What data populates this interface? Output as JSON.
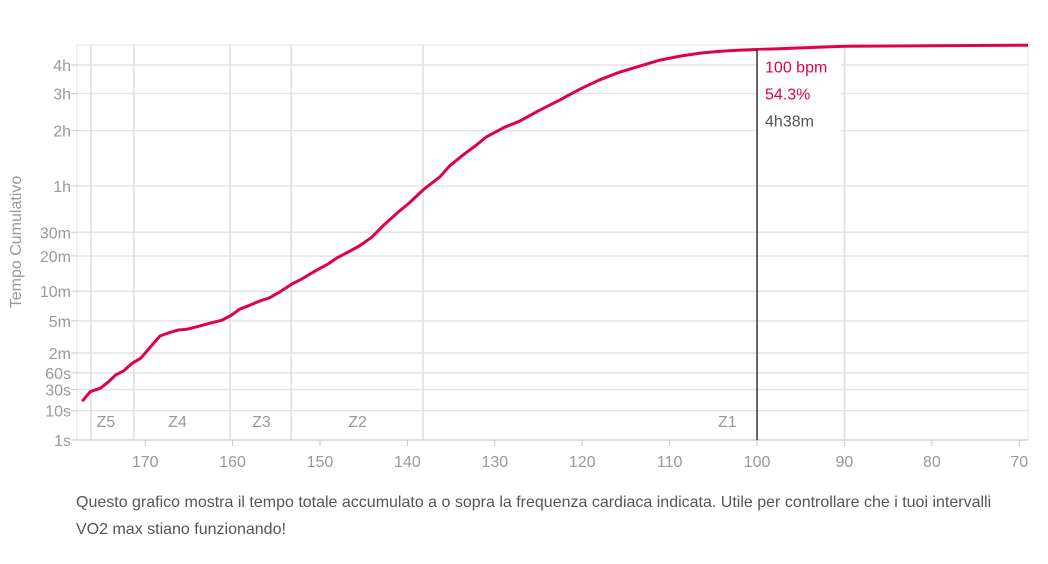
{
  "chart_data": {
    "type": "line",
    "title": "",
    "xlabel": "",
    "ylabel": "Tempo Cumulativo",
    "x_unit": "bpm",
    "y_unit": "seconds",
    "y_scale": "power-0.25",
    "xlim": [
      177.8,
      69
    ],
    "ylim": [
      1,
      17400
    ],
    "x_ticks": [
      170,
      160,
      150,
      140,
      130,
      120,
      110,
      100,
      90,
      80,
      70
    ],
    "y_ticks": [
      {
        "value": 1,
        "label": "1s"
      },
      {
        "value": 10,
        "label": "10s"
      },
      {
        "value": 30,
        "label": "30s"
      },
      {
        "value": 60,
        "label": "60s"
      },
      {
        "value": 120,
        "label": "2m"
      },
      {
        "value": 300,
        "label": "5m"
      },
      {
        "value": 600,
        "label": "10m"
      },
      {
        "value": 1200,
        "label": "20m"
      },
      {
        "value": 1800,
        "label": "30m"
      },
      {
        "value": 3600,
        "label": "1h"
      },
      {
        "value": 7200,
        "label": "2h"
      },
      {
        "value": 10800,
        "label": "3h"
      },
      {
        "value": 14400,
        "label": "4h"
      }
    ],
    "zone_boundaries": [
      176.2,
      171.3,
      160.3,
      153.3,
      138.2,
      90
    ],
    "zones": [
      {
        "label": "Z5",
        "bpm": 174.5
      },
      {
        "label": "Z4",
        "bpm": 166.3
      },
      {
        "label": "Z3",
        "bpm": 156.7
      },
      {
        "label": "Z2",
        "bpm": 145.7
      },
      {
        "label": "Z1",
        "bpm": 103.4
      }
    ],
    "color": "#e0004d",
    "series": [
      {
        "name": "Tempo Cumulativo",
        "x": [
          177.2,
          176.3,
          175.1,
          174.2,
          173.4,
          172.5,
          171.5,
          170.5,
          169.4,
          168.3,
          167.4,
          166.2,
          165.2,
          163.9,
          162.6,
          161.2,
          160.1,
          159.2,
          158.3,
          156.9,
          155.8,
          154.6,
          153.2,
          152.1,
          150.6,
          149.1,
          148.1,
          146.6,
          145.5,
          144.1,
          142.6,
          141.2,
          139.8,
          138.1,
          136.3,
          135.2,
          133.5,
          132.1,
          131.0,
          128.9,
          127.2,
          124.9,
          122.6,
          120.3,
          118.1,
          115.8,
          113.5,
          111.1,
          108.8,
          106.5,
          104.2,
          101.9,
          100,
          90,
          69
        ],
        "y": [
          17,
          27,
          32,
          42,
          55,
          64,
          85,
          101,
          145,
          200,
          217,
          236,
          241,
          261,
          283,
          305,
          348,
          400,
          429,
          484,
          518,
          591,
          698,
          772,
          902,
          1033,
          1155,
          1305,
          1430,
          1657,
          2050,
          2430,
          2824,
          3443,
          4055,
          4680,
          5445,
          6080,
          6680,
          7480,
          8010,
          9040,
          10080,
          11300,
          12390,
          13400,
          14220,
          15090,
          15680,
          16130,
          16420,
          16600,
          16680,
          17190,
          17370
        ]
      }
    ],
    "cursor": {
      "bpm": 100,
      "label": "100 bpm",
      "percent": "54.3%",
      "time": "4h38m"
    }
  },
  "caption": "Questo grafico mostra il tempo totale accumulato a o sopra la frequenza cardiaca indicata. Utile per controllare che i tuoi intervalli VO2 max stiano funzionando!"
}
